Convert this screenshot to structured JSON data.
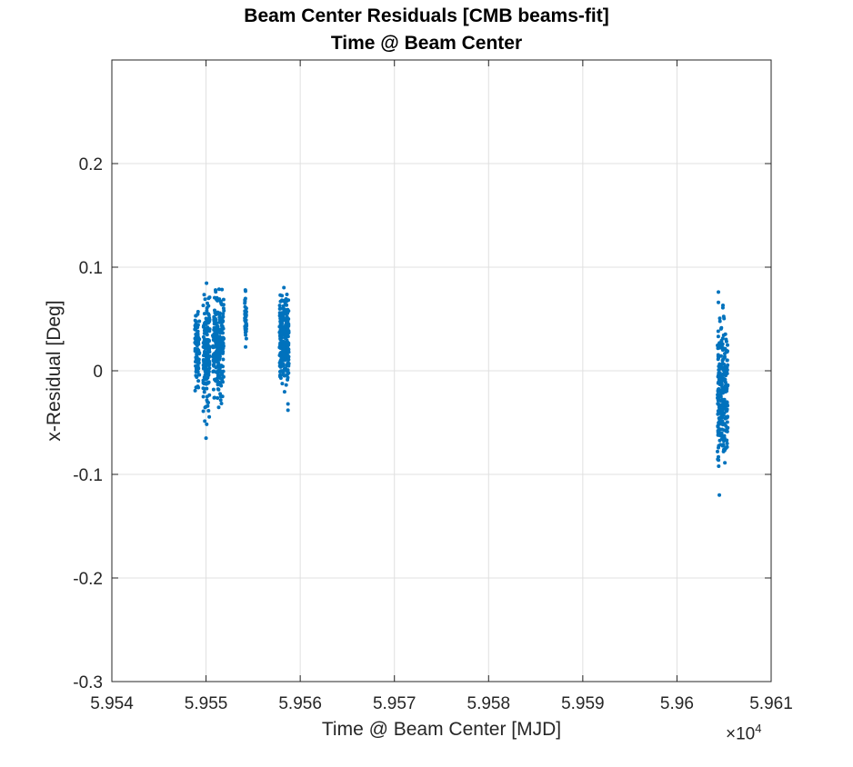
{
  "chart_data": {
    "type": "scatter",
    "title": "Beam Center Residuals [CMB beams-fit]",
    "subtitle": "Time @ Beam Center",
    "xlabel": "Time @ Beam Center [MJD]",
    "ylabel": "x-Residual [Deg]",
    "x_exponent_label": "×10",
    "x_exponent_power": "4",
    "xlim": [
      59540,
      59610
    ],
    "ylim": [
      -0.3,
      0.3
    ],
    "xticks": [
      59540,
      59550,
      59560,
      59570,
      59580,
      59590,
      59600,
      59610
    ],
    "xtick_labels": [
      "5.954",
      "5.955",
      "5.956",
      "5.957",
      "5.958",
      "5.959",
      "5.96",
      "5.961"
    ],
    "yticks": [
      -0.3,
      -0.2,
      -0.1,
      0,
      0.1,
      0.2
    ],
    "ytick_labels": [
      "-0.3",
      "-0.2",
      "-0.1",
      "0",
      "0.1",
      "0.2"
    ],
    "grid": true,
    "marker_color": "#0072BD",
    "series": [
      {
        "clusters": [
          {
            "x_range": [
              59548.8,
              59549.3
            ],
            "y_range": [
              -0.032,
              0.07
            ],
            "n": 90
          },
          {
            "x_range": [
              59549.7,
              59550.4
            ],
            "y_range": [
              -0.065,
              0.101
            ],
            "n": 160
          },
          {
            "x_range": [
              59550.7,
              59551.9
            ],
            "y_range": [
              -0.045,
              0.094
            ],
            "n": 220
          },
          {
            "x_range": [
              59554.1,
              59554.3
            ],
            "y_range": [
              0.022,
              0.087
            ],
            "n": 40
          },
          {
            "x_range": [
              59557.8,
              59558.8
            ],
            "y_range": [
              -0.038,
              0.089
            ],
            "n": 240
          },
          {
            "x_range": [
              59604.3,
              59605.4
            ],
            "y_range": [
              -0.12,
              0.076
            ],
            "n": 260
          }
        ],
        "points": [
          [
            59604.4,
            0.076
          ],
          [
            59604.4,
            0.066
          ],
          [
            59604.4,
            0.025
          ],
          [
            59604.5,
            -0.12
          ],
          [
            59558.7,
            -0.032
          ],
          [
            59558.7,
            -0.038
          ],
          [
            59550.0,
            -0.065
          ],
          [
            59554.2,
            0.023
          ]
        ]
      }
    ]
  }
}
